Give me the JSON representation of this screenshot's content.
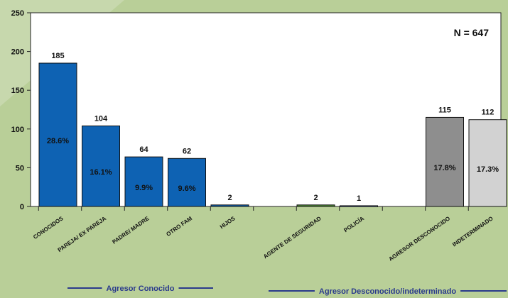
{
  "chart_data": {
    "type": "bar",
    "title": "",
    "xlabel": "",
    "ylabel": "",
    "ylim": [
      0,
      250
    ],
    "yticks": [
      0,
      50,
      100,
      150,
      200,
      250
    ],
    "grid": false,
    "annotation": "N = 647",
    "categories": [
      {
        "label": "CONOCIDOS",
        "value": 185,
        "percent": "28.6%",
        "color": "#0e62b3"
      },
      {
        "label": "PAREJA/ EX PAREJA",
        "value": 104,
        "percent": "16.1%",
        "color": "#0e62b3"
      },
      {
        "label": "PADRE/ MADRE",
        "value": 64,
        "percent": "9.9%",
        "color": "#0e62b3"
      },
      {
        "label": "OTRO FAM",
        "value": 62,
        "percent": "9.6%",
        "color": "#0e62b3"
      },
      {
        "label": "HIJOS",
        "value": 2,
        "percent": "",
        "color": "#0e62b3"
      },
      {
        "label": "AGENTE DE SEGURIDAD",
        "value": 2,
        "percent": "",
        "color": "#4f8f3a"
      },
      {
        "label": "POLICÍA",
        "value": 1,
        "percent": "",
        "color": "#8aa0c8"
      },
      {
        "label": "AGRESOR DESCONOCIDO",
        "value": 115,
        "percent": "17.8%",
        "color": "#8e8e8e"
      },
      {
        "label": "INDETERMINADO",
        "value": 112,
        "percent": "17.3%",
        "color": "#d2d2d2"
      }
    ],
    "groups": [
      {
        "label": "Agresor Conocido",
        "color": "#2a3a8c"
      },
      {
        "label": "Agresor Desconocido/indeterminado",
        "color": "#2a3a8c"
      }
    ]
  }
}
